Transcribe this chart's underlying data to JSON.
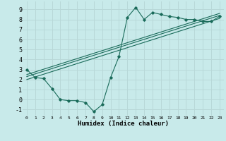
{
  "xlabel": "Humidex (Indice chaleur)",
  "background_color": "#c8eaea",
  "grid_color": "#b8d8d8",
  "line_color": "#1a6b5a",
  "xlim": [
    -0.5,
    23.5
  ],
  "ylim": [
    -1.6,
    9.8
  ],
  "xticks": [
    0,
    1,
    2,
    3,
    4,
    5,
    6,
    7,
    8,
    9,
    10,
    11,
    12,
    13,
    14,
    15,
    16,
    17,
    18,
    19,
    20,
    21,
    22,
    23
  ],
  "yticks": [
    -1,
    0,
    1,
    2,
    3,
    4,
    5,
    6,
    7,
    8,
    9
  ],
  "series1_x": [
    0,
    1,
    2,
    3,
    4,
    5,
    6,
    7,
    8,
    9,
    10,
    11,
    12,
    13,
    14,
    15,
    16,
    17,
    18,
    19,
    20,
    21,
    22,
    23
  ],
  "series1_y": [
    3.0,
    2.2,
    2.1,
    1.1,
    0.0,
    -0.1,
    -0.1,
    -0.3,
    -1.2,
    -0.5,
    2.2,
    4.3,
    8.2,
    9.2,
    8.0,
    8.7,
    8.5,
    8.3,
    8.2,
    8.0,
    8.0,
    7.8,
    7.8,
    8.3
  ],
  "series2_x": [
    0,
    23
  ],
  "series2_y": [
    2.3,
    8.4
  ],
  "series3_x": [
    0,
    23
  ],
  "series3_y": [
    2.5,
    8.6
  ],
  "series4_x": [
    0,
    23
  ],
  "series4_y": [
    2.0,
    8.1
  ]
}
